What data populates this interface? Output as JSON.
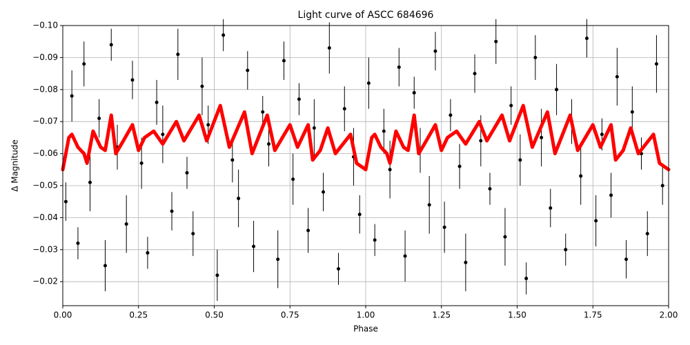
{
  "chart_data": {
    "type": "scatter",
    "title": "Light curve of ASCC 684696",
    "x_label": "Phase",
    "y_label": "Δ Magnitude",
    "xlim": [
      0,
      2
    ],
    "ylim": [
      -0.0125,
      -0.1
    ],
    "grid": true,
    "xticks": [
      {
        "value": 0,
        "label": "0.00"
      },
      {
        "value": 0.25,
        "label": "0.25"
      },
      {
        "value": 0.5,
        "label": "0.50"
      },
      {
        "value": 0.75,
        "label": "0.75"
      },
      {
        "value": 1,
        "label": "1.00"
      },
      {
        "value": 1.25,
        "label": "1.25"
      },
      {
        "value": 1.5,
        "label": "1.50"
      },
      {
        "value": 1.75,
        "label": "1.75"
      },
      {
        "value": 2,
        "label": "2.00"
      }
    ],
    "yticks": [
      {
        "value": -0.1,
        "label": "−0.10"
      },
      {
        "value": -0.09,
        "label": "−0.09"
      },
      {
        "value": -0.08,
        "label": "−0.08"
      },
      {
        "value": -0.07,
        "label": "−0.07"
      },
      {
        "value": -0.06,
        "label": "−0.06"
      },
      {
        "value": -0.05,
        "label": "−0.05"
      },
      {
        "value": -0.04,
        "label": "−0.04"
      },
      {
        "value": -0.03,
        "label": "−0.03"
      },
      {
        "value": -0.02,
        "label": "−0.02"
      }
    ],
    "points": {
      "color": "#000000",
      "x": [
        0.01,
        0.03,
        0.05,
        0.07,
        0.09,
        0.12,
        0.14,
        0.16,
        0.18,
        0.21,
        0.23,
        0.26,
        0.28,
        0.31,
        0.33,
        0.36,
        0.38,
        0.41,
        0.43,
        0.46,
        0.48,
        0.51,
        0.53,
        0.56,
        0.58,
        0.61,
        0.63,
        0.66,
        0.68,
        0.71,
        0.73,
        0.76,
        0.78,
        0.81,
        0.83,
        0.86,
        0.88,
        0.91,
        0.93,
        0.96,
        0.98,
        1.01,
        1.03,
        1.06,
        1.08,
        1.11,
        1.13,
        1.16,
        1.18,
        1.21,
        1.23,
        1.26,
        1.28,
        1.31,
        1.33,
        1.36,
        1.38,
        1.41,
        1.43,
        1.46,
        1.48,
        1.51,
        1.53,
        1.56,
        1.58,
        1.61,
        1.63,
        1.66,
        1.68,
        1.71,
        1.73,
        1.76,
        1.78,
        1.81,
        1.83,
        1.86,
        1.88,
        1.91,
        1.93,
        1.96,
        1.98
      ],
      "values": [
        -0.045,
        -0.078,
        -0.032,
        -0.088,
        -0.051,
        -0.071,
        -0.025,
        -0.094,
        -0.062,
        -0.038,
        -0.083,
        -0.057,
        -0.029,
        -0.076,
        -0.066,
        -0.042,
        -0.091,
        -0.054,
        -0.035,
        -0.081,
        -0.069,
        -0.022,
        -0.097,
        -0.058,
        -0.046,
        -0.086,
        -0.031,
        -0.073,
        -0.063,
        -0.027,
        -0.089,
        -0.052,
        -0.077,
        -0.036,
        -0.068,
        -0.048,
        -0.093,
        -0.024,
        -0.074,
        -0.059,
        -0.041,
        -0.082,
        -0.033,
        -0.067,
        -0.055,
        -0.087,
        -0.028,
        -0.079,
        -0.061,
        -0.044,
        -0.092,
        -0.037,
        -0.072,
        -0.056,
        -0.026,
        -0.085,
        -0.064,
        -0.049,
        -0.095,
        -0.034,
        -0.075,
        -0.058,
        -0.021,
        -0.09,
        -0.065,
        -0.043,
        -0.08,
        -0.03,
        -0.07,
        -0.053,
        -0.096,
        -0.039,
        -0.066,
        -0.047,
        -0.084,
        -0.027,
        -0.073,
        -0.06,
        -0.035,
        -0.088,
        -0.05
      ],
      "errors": [
        0.006,
        0.008,
        0.005,
        0.007,
        0.009,
        0.006,
        0.008,
        0.005,
        0.007,
        0.009,
        0.006,
        0.008,
        0.005,
        0.007,
        0.009,
        0.006,
        0.008,
        0.005,
        0.007,
        0.009,
        0.006,
        0.008,
        0.005,
        0.007,
        0.009,
        0.006,
        0.008,
        0.005,
        0.007,
        0.009,
        0.006,
        0.008,
        0.005,
        0.007,
        0.009,
        0.006,
        0.008,
        0.005,
        0.007,
        0.009,
        0.006,
        0.008,
        0.005,
        0.007,
        0.009,
        0.006,
        0.008,
        0.005,
        0.007,
        0.009,
        0.006,
        0.008,
        0.005,
        0.007,
        0.009,
        0.006,
        0.008,
        0.005,
        0.007,
        0.009,
        0.006,
        0.008,
        0.005,
        0.007,
        0.009,
        0.006,
        0.008,
        0.005,
        0.007,
        0.009,
        0.006,
        0.008,
        0.005,
        0.007,
        0.009,
        0.006,
        0.008,
        0.005,
        0.007,
        0.009,
        0.006
      ]
    },
    "model": {
      "color": "#ff0000",
      "x": [
        0,
        0.02,
        0.03,
        0.05,
        0.07,
        0.08,
        0.1,
        0.125,
        0.14,
        0.16,
        0.175,
        0.2,
        0.23,
        0.25,
        0.27,
        0.3,
        0.33,
        0.375,
        0.4,
        0.45,
        0.475,
        0.52,
        0.55,
        0.6,
        0.625,
        0.675,
        0.7,
        0.75,
        0.775,
        0.81,
        0.825,
        0.85,
        0.875,
        0.9,
        0.95,
        0.97,
        1,
        1.02,
        1.03,
        1.05,
        1.07,
        1.08,
        1.1,
        1.125,
        1.14,
        1.16,
        1.175,
        1.2,
        1.23,
        1.25,
        1.27,
        1.3,
        1.33,
        1.375,
        1.4,
        1.45,
        1.475,
        1.52,
        1.55,
        1.6,
        1.625,
        1.675,
        1.7,
        1.75,
        1.775,
        1.81,
        1.825,
        1.85,
        1.875,
        1.9,
        1.95,
        1.97,
        2
      ],
      "values": [
        -0.055,
        -0.065,
        -0.066,
        -0.062,
        -0.06,
        -0.057,
        -0.067,
        -0.062,
        -0.061,
        -0.072,
        -0.06,
        -0.064,
        -0.069,
        -0.061,
        -0.065,
        -0.067,
        -0.063,
        -0.07,
        -0.064,
        -0.072,
        -0.064,
        -0.075,
        -0.062,
        -0.073,
        -0.06,
        -0.072,
        -0.061,
        -0.069,
        -0.062,
        -0.069,
        -0.058,
        -0.061,
        -0.068,
        -0.06,
        -0.066,
        -0.057,
        -0.055,
        -0.065,
        -0.066,
        -0.062,
        -0.06,
        -0.057,
        -0.067,
        -0.062,
        -0.061,
        -0.072,
        -0.06,
        -0.064,
        -0.069,
        -0.061,
        -0.065,
        -0.067,
        -0.063,
        -0.07,
        -0.064,
        -0.072,
        -0.064,
        -0.075,
        -0.062,
        -0.073,
        -0.06,
        -0.072,
        -0.061,
        -0.069,
        -0.062,
        -0.069,
        -0.058,
        -0.061,
        -0.068,
        -0.06,
        -0.066,
        -0.057,
        -0.055
      ]
    }
  }
}
